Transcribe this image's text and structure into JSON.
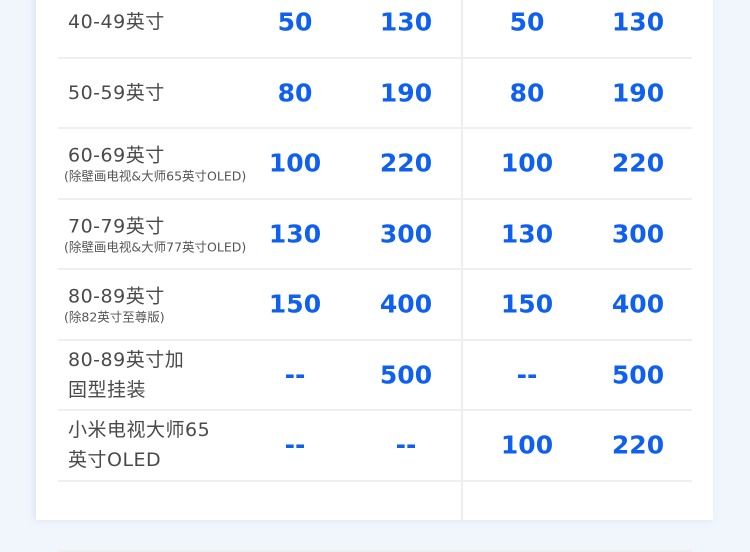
{
  "table": {
    "rows": [
      {
        "label": "40-49英寸",
        "note": "",
        "values": [
          "50",
          "130",
          "50",
          "130"
        ]
      },
      {
        "label": "50-59英寸",
        "note": "",
        "values": [
          "80",
          "190",
          "80",
          "190"
        ]
      },
      {
        "label": "60-69英寸",
        "note": "(除壁画电视&大师65英寸OLED)",
        "values": [
          "100",
          "220",
          "100",
          "220"
        ]
      },
      {
        "label": "70-79英寸",
        "note": "(除壁画电视&大师77英寸OLED)",
        "values": [
          "130",
          "300",
          "130",
          "300"
        ]
      },
      {
        "label": "80-89英寸",
        "note": "(除82英寸至尊版)",
        "values": [
          "150",
          "400",
          "150",
          "400"
        ]
      },
      {
        "label": "80-89英寸加",
        "label2": "固型挂装",
        "values": [
          "--",
          "500",
          "--",
          "500"
        ]
      },
      {
        "label": "小米电视大师65",
        "label2": "英寸OLED",
        "values": [
          "--",
          "--",
          "100",
          "220"
        ]
      }
    ]
  },
  "colors": {
    "value": "#1060f0",
    "label": "#4a4a4a",
    "background": "#f1f5fc"
  }
}
